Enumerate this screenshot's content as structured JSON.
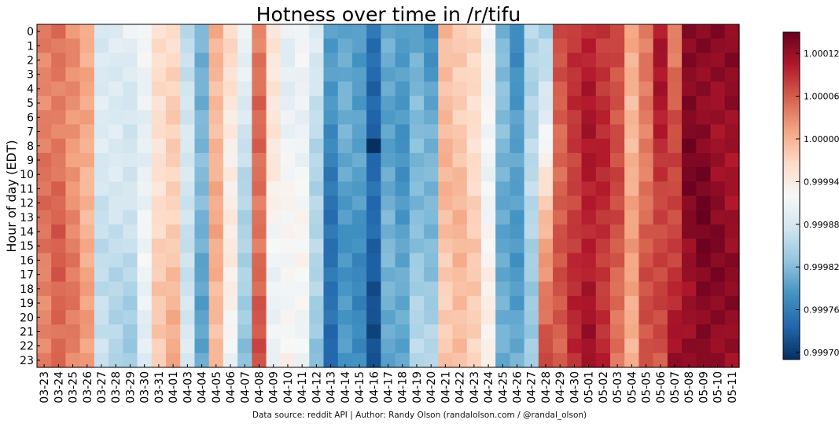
{
  "chart_data": {
    "type": "heatmap",
    "title": "Hotness over time in /r/tifu",
    "xlabel": "",
    "ylabel": "Hour of day (EDT)",
    "x_categories": [
      "03-23",
      "03-24",
      "03-25",
      "03-26",
      "03-27",
      "03-28",
      "03-29",
      "03-30",
      "03-31",
      "04-01",
      "04-03",
      "04-04",
      "04-05",
      "04-06",
      "04-07",
      "04-08",
      "04-09",
      "04-10",
      "04-11",
      "04-12",
      "04-13",
      "04-14",
      "04-15",
      "04-16",
      "04-17",
      "04-18",
      "04-19",
      "04-20",
      "04-21",
      "04-22",
      "04-23",
      "04-24",
      "04-25",
      "04-26",
      "04-27",
      "04-28",
      "04-29",
      "04-30",
      "05-01",
      "05-02",
      "05-03",
      "05-04",
      "05-05",
      "05-06",
      "05-07",
      "05-08",
      "05-09",
      "05-10",
      "05-11"
    ],
    "y_categories": [
      "0",
      "1",
      "2",
      "3",
      "4",
      "5",
      "6",
      "7",
      "8",
      "9",
      "10",
      "11",
      "12",
      "13",
      "14",
      "15",
      "16",
      "17",
      "18",
      "19",
      "20",
      "21",
      "22",
      "23"
    ],
    "value_scale": {
      "min": 0.99969,
      "max": 1.00015,
      "colorbar_ticks": [
        "1.00012",
        "1.00006",
        "1.00000",
        "0.99994",
        "0.99988",
        "0.99982",
        "0.99976",
        "0.99970"
      ],
      "colormap": [
        "#053061",
        "#2166ac",
        "#4393c3",
        "#92c5de",
        "#d1e5f0",
        "#f7f7f7",
        "#fddbc7",
        "#f4a582",
        "#d6604d",
        "#b2182b",
        "#67001f"
      ]
    },
    "day_profiles": [
      [
        1.00004,
        1.00004
      ],
      [
        1.00004,
        1.00006
      ],
      [
        1.00002,
        1.00004
      ],
      [
        1.0,
        1.00001
      ],
      [
        0.99989,
        0.99986
      ],
      [
        0.9999,
        0.99985
      ],
      [
        0.9999,
        0.99984
      ],
      [
        0.99991,
        0.9999
      ],
      [
        0.99995,
        0.99998
      ],
      [
        0.99996,
        1.0
      ],
      [
        0.99987,
        0.99988
      ],
      [
        0.99982,
        0.9998
      ],
      [
        1.0,
        1.0
      ],
      [
        0.99996,
        0.99992
      ],
      [
        0.9999,
        0.99982
      ],
      [
        1.00004,
        1.00006
      ],
      [
        0.99996,
        0.9999
      ],
      [
        0.9999,
        0.99993
      ],
      [
        0.99991,
        0.99992
      ],
      [
        0.99988,
        0.99983
      ],
      [
        0.99979,
        0.99973
      ],
      [
        0.99981,
        0.99978
      ],
      [
        0.9998,
        0.99977
      ],
      [
        0.99975,
        0.99972
      ],
      [
        0.9998,
        0.99981
      ],
      [
        0.99978,
        0.9998
      ],
      [
        0.9998,
        0.99985
      ],
      [
        0.99978,
        0.99985
      ],
      [
        1.0,
        0.99998
      ],
      [
        0.99998,
        1.0
      ],
      [
        0.99996,
        0.99998
      ],
      [
        0.99991,
        0.99993
      ],
      [
        0.99982,
        0.9998
      ],
      [
        0.99978,
        0.9998
      ],
      [
        0.99986,
        0.99984
      ],
      [
        0.99984,
        1.00009
      ],
      [
        1.00006,
        1.00006
      ],
      [
        1.00008,
        1.00009
      ],
      [
        1.0001,
        1.00011
      ],
      [
        1.00009,
        1.00009
      ],
      [
        1.00008,
        1.00005
      ],
      [
        1.0,
        1.00001
      ],
      [
        1.00003,
        1.00007
      ],
      [
        1.00011,
        1.00006
      ],
      [
        1.00004,
        1.00011
      ],
      [
        1.00014,
        1.00012
      ],
      [
        1.00013,
        1.00014
      ],
      [
        1.00012,
        1.00013
      ],
      [
        1.00012,
        1.00012
      ]
    ],
    "min_cell": {
      "day": "04-16",
      "hour": "8",
      "value": 0.99969
    },
    "grid": false,
    "colorbar_position": "right"
  },
  "footer": {
    "source_note": "Data source: reddit API | Author: Randy Olson (randalolson.com / @randal_olson)"
  }
}
